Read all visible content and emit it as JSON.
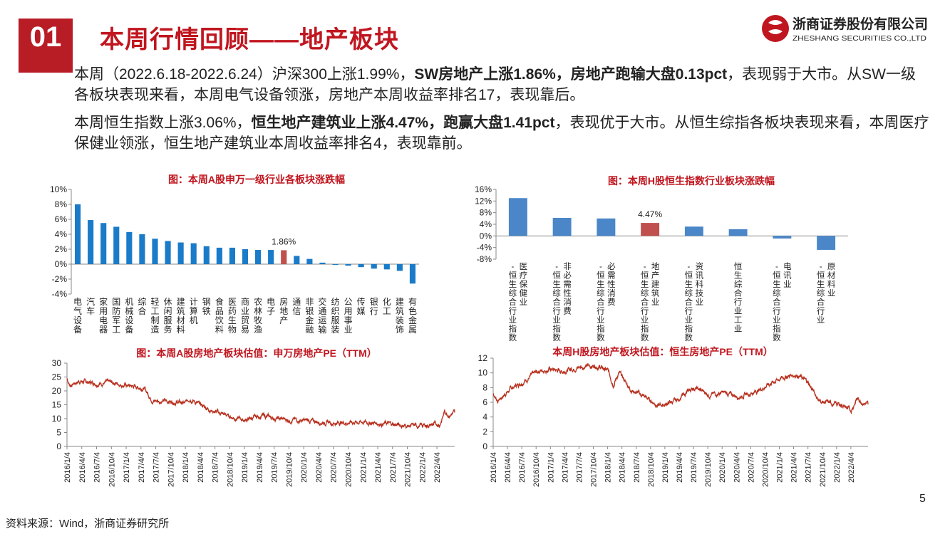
{
  "header": {
    "section_number": "01",
    "title": "本周行情回顾——地产板块",
    "logo_cn": "浙商证券股份有限公司",
    "logo_en": "ZHESHANG SECURITIES CO.,LTD"
  },
  "paragraphs": [
    {
      "a": "本周（2022.6.18-2022.6.24）沪深300上涨1.99%，",
      "b": "SW房地产上涨1.86%，房地产跑输大盘0.13pct",
      "c": "，表现弱于大市。从SW一级各板块表现来看，本周电气设备领涨，房地产本周收益率排名17，表现靠后。"
    },
    {
      "a": "本周恒生指数上涨3.06%，",
      "b": "恒生地产建筑业上涨4.47%，跑赢大盘1.41pct",
      "c": "，表现优于大市。从恒生综指各板块表现来看，本周医疗保健业领涨，恒生地产建筑业本周收益率排名4，表现靠前。"
    }
  ],
  "footer": {
    "source": "资料来源：Wind，浙商证券研究所",
    "page": "5"
  },
  "colors": {
    "brand_red": "#c0161f",
    "badge_red": "#b81c25",
    "bar_blue": "#1a7bc9",
    "bar_blue_h": "#4a86c8",
    "highlight_red": "#c0504d",
    "line_red": "#b8311f"
  },
  "chart_data": [
    {
      "id": "sw-industry",
      "type": "bar",
      "title": "图：本周A股申万一级行业各板块涨跌幅",
      "categories": [
        "电气设备",
        "汽车",
        "家用电器",
        "国防军工",
        "机械设备",
        "综合",
        "轻工制造",
        "休闲服务",
        "建筑材料",
        "计算机",
        "钢铁",
        "食品饮料",
        "医药生物",
        "商业贸易",
        "农林牧渔",
        "电子",
        "房地产",
        "通信",
        "非银金融",
        "交通运输",
        "纺织服装",
        "公用事业",
        "传媒",
        "银行",
        "化工",
        "建筑装饰",
        "有色金属"
      ],
      "values": [
        8.0,
        5.9,
        5.5,
        5.0,
        4.3,
        4.0,
        3.4,
        3.1,
        2.9,
        2.8,
        2.4,
        2.2,
        2.2,
        2.0,
        1.9,
        1.9,
        1.86,
        1.1,
        0.7,
        0.2,
        -0.1,
        -0.2,
        -0.4,
        -0.6,
        -0.7,
        -0.9,
        -2.6
      ],
      "highlight_index": 16,
      "highlight_label": "1.86%",
      "yticks": [
        "10%",
        "8%",
        "6%",
        "4%",
        "2%",
        "0%",
        "-2%",
        "-4%"
      ],
      "ylim": [
        -4,
        10
      ]
    },
    {
      "id": "hs-industry",
      "type": "bar",
      "title": "图：本周H股恒生指数行业板块涨跌幅",
      "categories": [
        "恒生综合行业指数-医疗保健业",
        "恒生综合行业指数-非必需性消费",
        "恒生综合行业指数-必需性消费",
        "恒生综合行业指数-地产建筑业",
        "恒生综合行业指数-资讯科技业",
        "恒生综合行业工业",
        "恒生综合行业指数-电讯业",
        "恒生综合行业-原材料业"
      ],
      "values": [
        13.0,
        6.2,
        6.0,
        4.47,
        3.2,
        2.3,
        -0.9,
        -4.8
      ],
      "highlight_index": 3,
      "highlight_label": "4.47%",
      "yticks": [
        "16%",
        "12%",
        "8%",
        "4%",
        "0%",
        "-4%",
        "-8%"
      ],
      "ylim": [
        -8,
        16
      ]
    },
    {
      "id": "sw-pe",
      "type": "line",
      "title": "图：本周A股房地产板块估值：申万房地产PE（TTM）",
      "xticks": [
        "2016/1/4",
        "2016/4/4",
        "2016/7/4",
        "2016/10/4",
        "2017/1/4",
        "2017/4/4",
        "2017/7/4",
        "2017/10/4",
        "2018/1/4",
        "2018/4/4",
        "2018/7/4",
        "2018/10/4",
        "2019/1/4",
        "2019/4/4",
        "2019/7/4",
        "2019/10/4",
        "2020/1/4",
        "2020/4/4",
        "2020/7/4",
        "2020/10/4",
        "2021/1/4",
        "2021/4/4",
        "2021/7/4",
        "2021/10/4",
        "2022/1/4",
        "2022/4/4"
      ],
      "yticks": [
        "30",
        "25",
        "20",
        "15",
        "10",
        "5",
        "0"
      ],
      "ylim": [
        0,
        30
      ],
      "anchors": [
        [
          2016.0,
          24.5
        ],
        [
          2016.05,
          22
        ],
        [
          2016.2,
          23.5
        ],
        [
          2016.5,
          22.8
        ],
        [
          2016.8,
          23
        ],
        [
          2017.0,
          22
        ],
        [
          2017.3,
          21
        ],
        [
          2017.45,
          16.5
        ],
        [
          2017.8,
          16.2
        ],
        [
          2018.0,
          15.5
        ],
        [
          2018.08,
          17.5
        ],
        [
          2018.2,
          15.5
        ],
        [
          2018.5,
          12.5
        ],
        [
          2018.8,
          10.5
        ],
        [
          2019.0,
          9.5
        ],
        [
          2019.3,
          11
        ],
        [
          2019.6,
          9.8
        ],
        [
          2020.0,
          9.3
        ],
        [
          2020.5,
          8.5
        ],
        [
          2021.0,
          8.8
        ],
        [
          2021.4,
          8.2
        ],
        [
          2021.7,
          7.5
        ],
        [
          2021.9,
          7.3
        ],
        [
          2022.1,
          7.7
        ],
        [
          2022.3,
          8.0
        ],
        [
          2022.38,
          12.5
        ],
        [
          2022.45,
          11.5
        ],
        [
          2022.55,
          12.2
        ]
      ]
    },
    {
      "id": "hs-pe",
      "type": "line",
      "title": "本周H股房地产板块估值：恒生房地产PE（TTM）",
      "xticks": [
        "2016/1/4",
        "2016/4/4",
        "2016/7/4",
        "2016/10/4",
        "2017/1/4",
        "2017/4/4",
        "2017/7/4",
        "2017/10/4",
        "2018/1/4",
        "2018/4/4",
        "2018/7/4",
        "2018/10/4",
        "2019/1/4",
        "2019/4/4",
        "2019/7/4",
        "2019/10/4",
        "2020/1/4",
        "2020/4/4",
        "2020/7/4",
        "2020/10/4",
        "2021/1/4",
        "2021/4/4",
        "2021/7/4",
        "2021/10/4",
        "2022/1/4",
        "2022/4/4"
      ],
      "yticks": [
        "12",
        "10",
        "8",
        "6",
        "4",
        "2",
        "0"
      ],
      "ylim": [
        0,
        12
      ],
      "anchors": [
        [
          2016.0,
          7.2
        ],
        [
          2016.08,
          6.2
        ],
        [
          2016.3,
          7.8
        ],
        [
          2016.6,
          9.2
        ],
        [
          2016.8,
          10.3
        ],
        [
          2017.0,
          10.5
        ],
        [
          2017.2,
          10.2
        ],
        [
          2017.5,
          10.8
        ],
        [
          2017.8,
          11
        ],
        [
          2018.0,
          10.3
        ],
        [
          2018.1,
          8.5
        ],
        [
          2018.2,
          10
        ],
        [
          2018.4,
          7.8
        ],
        [
          2018.7,
          6.5
        ],
        [
          2018.9,
          5.5
        ],
        [
          2019.2,
          6.2
        ],
        [
          2019.5,
          8
        ],
        [
          2019.8,
          7
        ],
        [
          2020.0,
          7.3
        ],
        [
          2020.3,
          6.8
        ],
        [
          2020.6,
          7.5
        ],
        [
          2020.9,
          8.8
        ],
        [
          2021.1,
          9.5
        ],
        [
          2021.3,
          9.8
        ],
        [
          2021.5,
          8.7
        ],
        [
          2021.7,
          6.2
        ],
        [
          2021.9,
          5.8
        ],
        [
          2022.1,
          5.7
        ],
        [
          2022.25,
          4.8
        ],
        [
          2022.35,
          6.5
        ],
        [
          2022.55,
          5.7
        ]
      ]
    }
  ]
}
